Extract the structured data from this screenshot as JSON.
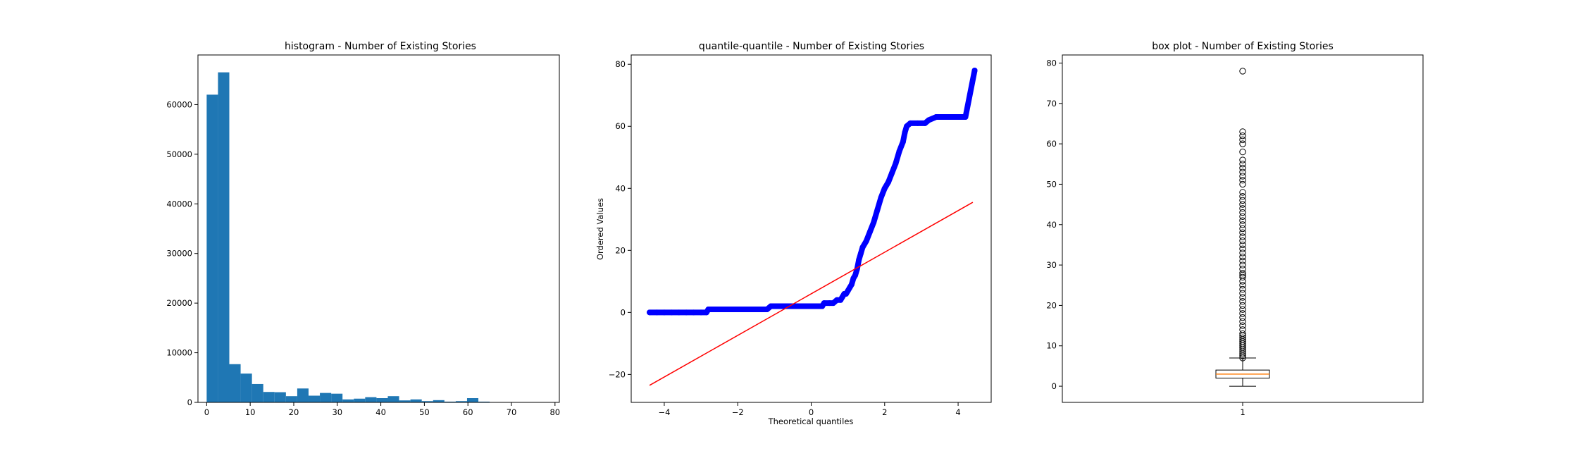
{
  "chart_data": [
    {
      "type": "bar",
      "title": "histogram - Number of Existing Stories",
      "xlabel": "",
      "ylabel": "",
      "xlim": [
        -2,
        81
      ],
      "ylim": [
        0,
        70000
      ],
      "xticks": [
        0,
        10,
        20,
        30,
        40,
        50,
        60,
        70,
        80
      ],
      "yticks": [
        0,
        10000,
        20000,
        30000,
        40000,
        50000,
        60000
      ],
      "bar_color": "#1f77b4",
      "bin_width": 2.6,
      "bin_start": 0,
      "values": [
        62000,
        66500,
        7700,
        5800,
        3700,
        2100,
        2050,
        1250,
        2800,
        1350,
        1900,
        1750,
        600,
        750,
        1050,
        850,
        1250,
        400,
        600,
        250,
        450,
        150,
        250,
        850,
        150,
        50,
        0,
        0,
        0,
        0
      ]
    },
    {
      "type": "scatter",
      "title": "quantile-quantile - Number of Existing Stories",
      "xlabel": "Theoretical quantiles",
      "ylabel": "Ordered Values",
      "xlim": [
        -4.9,
        4.9
      ],
      "ylim": [
        -29,
        83
      ],
      "xticks": [
        -4,
        -2,
        0,
        2,
        4
      ],
      "yticks": [
        -20,
        0,
        20,
        40,
        60,
        80
      ],
      "point_color": "#0000ff",
      "line_color": "#ff0000",
      "fit_line": {
        "x": [
          -4.4,
          4.4
        ],
        "y": [
          -23.5,
          35.5
        ]
      },
      "points": [
        [
          -4.4,
          0
        ],
        [
          -4.2,
          0
        ],
        [
          -4.0,
          0
        ],
        [
          -3.8,
          0
        ],
        [
          -3.6,
          0
        ],
        [
          -3.4,
          0
        ],
        [
          -3.2,
          0
        ],
        [
          -3.0,
          0
        ],
        [
          -2.85,
          0
        ],
        [
          -2.8,
          1
        ],
        [
          -2.6,
          1
        ],
        [
          -2.4,
          1
        ],
        [
          -2.2,
          1
        ],
        [
          -2.0,
          1
        ],
        [
          -1.8,
          1
        ],
        [
          -1.6,
          1
        ],
        [
          -1.4,
          1
        ],
        [
          -1.2,
          1
        ],
        [
          -1.1,
          2
        ],
        [
          -0.9,
          2
        ],
        [
          -0.7,
          2
        ],
        [
          -0.5,
          2
        ],
        [
          -0.3,
          2
        ],
        [
          -0.1,
          2
        ],
        [
          0.1,
          2
        ],
        [
          0.3,
          2
        ],
        [
          0.35,
          3
        ],
        [
          0.5,
          3
        ],
        [
          0.6,
          3
        ],
        [
          0.7,
          4
        ],
        [
          0.8,
          4
        ],
        [
          0.85,
          5
        ],
        [
          0.9,
          6
        ],
        [
          0.95,
          6
        ],
        [
          1.0,
          7
        ],
        [
          1.05,
          8
        ],
        [
          1.1,
          9
        ],
        [
          1.15,
          11
        ],
        [
          1.2,
          12
        ],
        [
          1.25,
          14
        ],
        [
          1.3,
          17
        ],
        [
          1.35,
          19
        ],
        [
          1.4,
          21
        ],
        [
          1.5,
          23
        ],
        [
          1.6,
          26
        ],
        [
          1.7,
          29
        ],
        [
          1.8,
          33
        ],
        [
          1.9,
          37
        ],
        [
          2.0,
          40
        ],
        [
          2.1,
          42
        ],
        [
          2.2,
          45
        ],
        [
          2.3,
          48
        ],
        [
          2.4,
          52
        ],
        [
          2.5,
          55
        ],
        [
          2.55,
          58
        ],
        [
          2.6,
          60
        ],
        [
          2.7,
          61
        ],
        [
          2.9,
          61
        ],
        [
          3.1,
          61
        ],
        [
          3.2,
          62
        ],
        [
          3.4,
          63
        ],
        [
          3.6,
          63
        ],
        [
          3.8,
          63
        ],
        [
          4.0,
          63
        ],
        [
          4.2,
          63
        ],
        [
          4.45,
          78
        ]
      ]
    },
    {
      "type": "box",
      "title": "box plot - Number of Existing Stories",
      "xlabel": "",
      "ylabel": "",
      "xlim": [
        0.5,
        1.5
      ],
      "ylim": [
        -4,
        82
      ],
      "xticks": [
        1
      ],
      "yticks": [
        0,
        10,
        20,
        30,
        40,
        50,
        60,
        70,
        80
      ],
      "box_color": "#000000",
      "median_color": "#ff7f0e",
      "whisker_low": 0,
      "q1": 2,
      "median": 3,
      "q3": 4,
      "whisker_high": 7,
      "outliers": [
        7,
        7.5,
        8,
        8.5,
        9,
        9.5,
        10,
        10.5,
        11,
        11.5,
        12,
        12.5,
        13,
        14,
        15,
        16,
        17,
        18,
        19,
        20,
        21,
        22,
        23,
        24,
        25,
        26,
        27,
        27.5,
        28,
        29,
        30,
        31,
        32,
        33,
        34,
        35,
        36,
        37,
        38,
        39,
        40,
        41,
        42,
        43,
        44,
        45,
        46,
        47,
        48,
        50,
        51,
        52,
        53,
        54,
        55,
        56,
        58,
        60,
        61,
        62,
        63,
        78
      ]
    }
  ]
}
